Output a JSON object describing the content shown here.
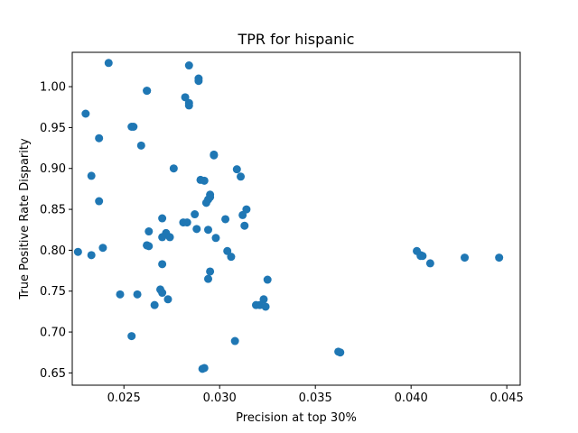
{
  "chart_data": {
    "type": "scatter",
    "title": "TPR for hispanic",
    "xlabel": "Precision at top 30%",
    "ylabel": "True Positive Rate Disparity",
    "xlim": [
      0.0223,
      0.0457
    ],
    "ylim": [
      0.635,
      1.042
    ],
    "xticks": [
      0.025,
      0.03,
      0.035,
      0.04,
      0.045
    ],
    "xtick_labels": [
      "0.025",
      "0.030",
      "0.035",
      "0.040",
      "0.045"
    ],
    "yticks": [
      0.65,
      0.7,
      0.75,
      0.8,
      0.85,
      0.9,
      0.95,
      1.0
    ],
    "ytick_labels": [
      "0.65",
      "0.70",
      "0.75",
      "0.80",
      "0.85",
      "0.90",
      "0.95",
      "1.00"
    ],
    "grid": false,
    "marker_color": "#1f77b4",
    "points": [
      [
        0.0242,
        1.029
      ],
      [
        0.0284,
        1.026
      ],
      [
        0.0289,
        1.01
      ],
      [
        0.0289,
        1.007
      ],
      [
        0.0262,
        0.995
      ],
      [
        0.0262,
        0.995
      ],
      [
        0.0282,
        0.987
      ],
      [
        0.0284,
        0.98
      ],
      [
        0.0284,
        0.977
      ],
      [
        0.023,
        0.967
      ],
      [
        0.0254,
        0.951
      ],
      [
        0.0255,
        0.951
      ],
      [
        0.0237,
        0.937
      ],
      [
        0.0259,
        0.928
      ],
      [
        0.0297,
        0.917
      ],
      [
        0.0297,
        0.916
      ],
      [
        0.0276,
        0.9
      ],
      [
        0.0309,
        0.899
      ],
      [
        0.0233,
        0.891
      ],
      [
        0.0311,
        0.89
      ],
      [
        0.029,
        0.886
      ],
      [
        0.0292,
        0.885
      ],
      [
        0.0295,
        0.868
      ],
      [
        0.0295,
        0.865
      ],
      [
        0.0294,
        0.862
      ],
      [
        0.0293,
        0.858
      ],
      [
        0.0237,
        0.86
      ],
      [
        0.0314,
        0.85
      ],
      [
        0.0287,
        0.844
      ],
      [
        0.0312,
        0.843
      ],
      [
        0.027,
        0.839
      ],
      [
        0.0303,
        0.838
      ],
      [
        0.0281,
        0.834
      ],
      [
        0.0283,
        0.834
      ],
      [
        0.0313,
        0.83
      ],
      [
        0.0288,
        0.826
      ],
      [
        0.0294,
        0.825
      ],
      [
        0.0263,
        0.823
      ],
      [
        0.0272,
        0.821
      ],
      [
        0.027,
        0.816
      ],
      [
        0.0274,
        0.816
      ],
      [
        0.0298,
        0.815
      ],
      [
        0.0262,
        0.806
      ],
      [
        0.0262,
        0.806
      ],
      [
        0.0263,
        0.805
      ],
      [
        0.0239,
        0.803
      ],
      [
        0.0226,
        0.798
      ],
      [
        0.0304,
        0.799
      ],
      [
        0.0233,
        0.794
      ],
      [
        0.0306,
        0.792
      ],
      [
        0.027,
        0.783
      ],
      [
        0.0295,
        0.774
      ],
      [
        0.0294,
        0.765
      ],
      [
        0.0325,
        0.764
      ],
      [
        0.0269,
        0.752
      ],
      [
        0.027,
        0.748
      ],
      [
        0.0248,
        0.746
      ],
      [
        0.0257,
        0.746
      ],
      [
        0.0273,
        0.74
      ],
      [
        0.0323,
        0.74
      ],
      [
        0.0266,
        0.733
      ],
      [
        0.0319,
        0.733
      ],
      [
        0.0321,
        0.733
      ],
      [
        0.0324,
        0.731
      ],
      [
        0.0254,
        0.695
      ],
      [
        0.0308,
        0.689
      ],
      [
        0.0362,
        0.676
      ],
      [
        0.0363,
        0.675
      ],
      [
        0.0292,
        0.656
      ],
      [
        0.0291,
        0.655
      ],
      [
        0.0403,
        0.799
      ],
      [
        0.0405,
        0.794
      ],
      [
        0.0405,
        0.793
      ],
      [
        0.0406,
        0.793
      ],
      [
        0.041,
        0.784
      ],
      [
        0.0428,
        0.791
      ],
      [
        0.0446,
        0.791
      ]
    ]
  }
}
